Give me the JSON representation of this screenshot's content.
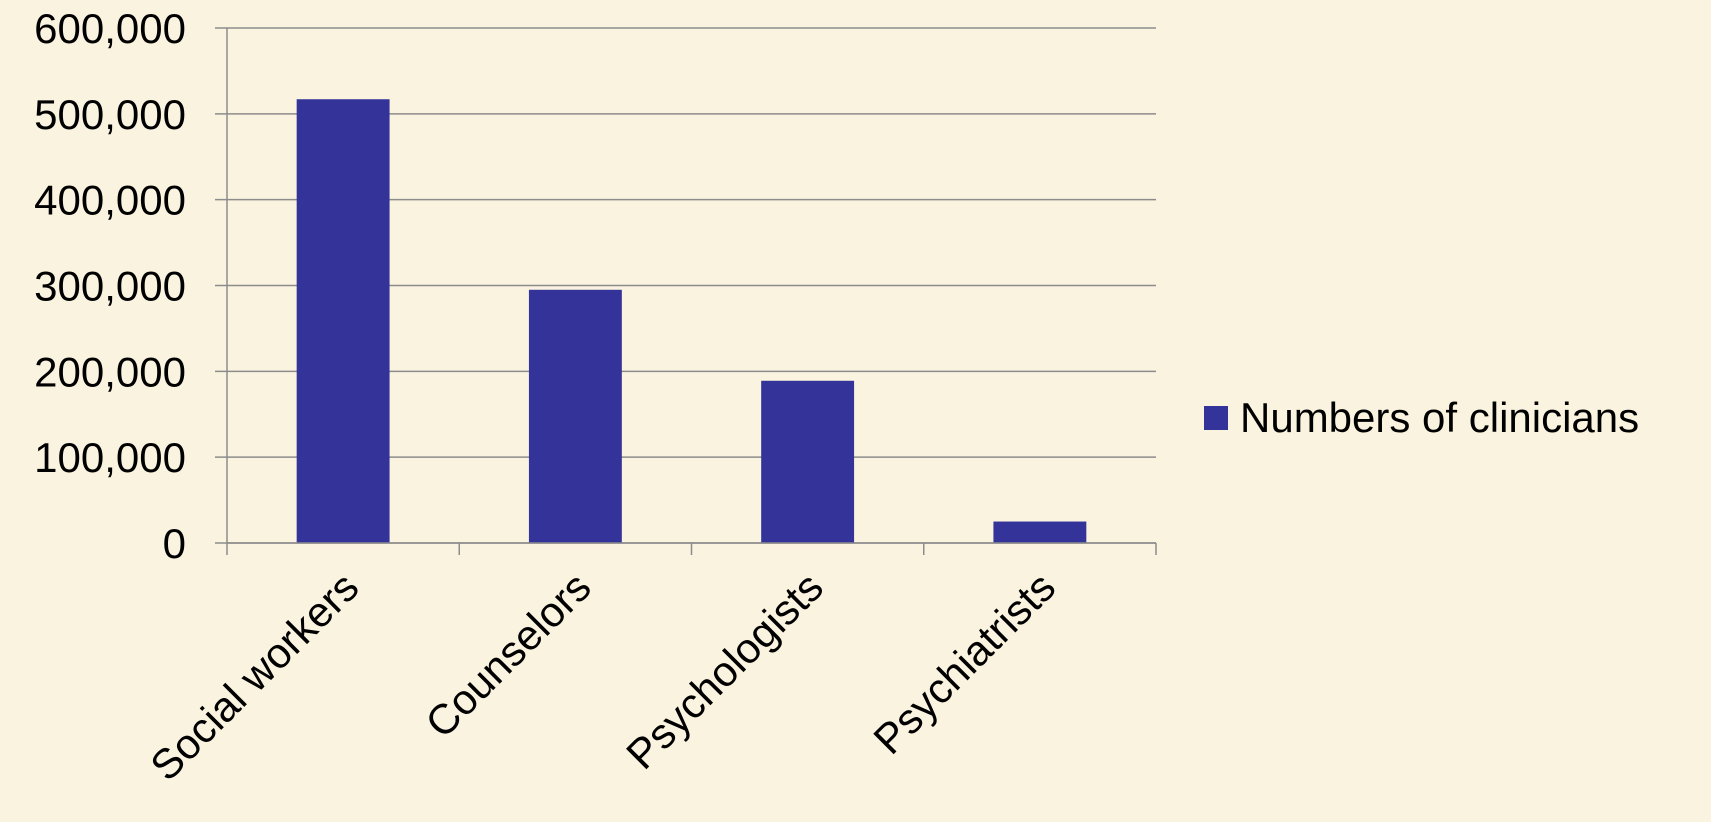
{
  "chart_data": {
    "type": "bar",
    "title": "",
    "xlabel": "",
    "ylabel": "",
    "categories": [
      "Social workers",
      "Counselors",
      "Psychologists",
      "Psychiatrists"
    ],
    "series": [
      {
        "name": "Numbers of clinicians",
        "values": [
          517000,
          295000,
          189000,
          25000
        ]
      }
    ],
    "ylim": [
      0,
      600000
    ],
    "yticks": [
      0,
      100000,
      200000,
      300000,
      400000,
      500000,
      600000
    ],
    "ytick_labels": [
      "0",
      "100,000",
      "200,000",
      "300,000",
      "400,000",
      "500,000",
      "600,000"
    ],
    "grid": true,
    "legend_position": "right",
    "colors": {
      "bar": "#333399",
      "background": "#FAF3DF",
      "gridline": "#8C8C8C",
      "text": "#000000"
    }
  }
}
